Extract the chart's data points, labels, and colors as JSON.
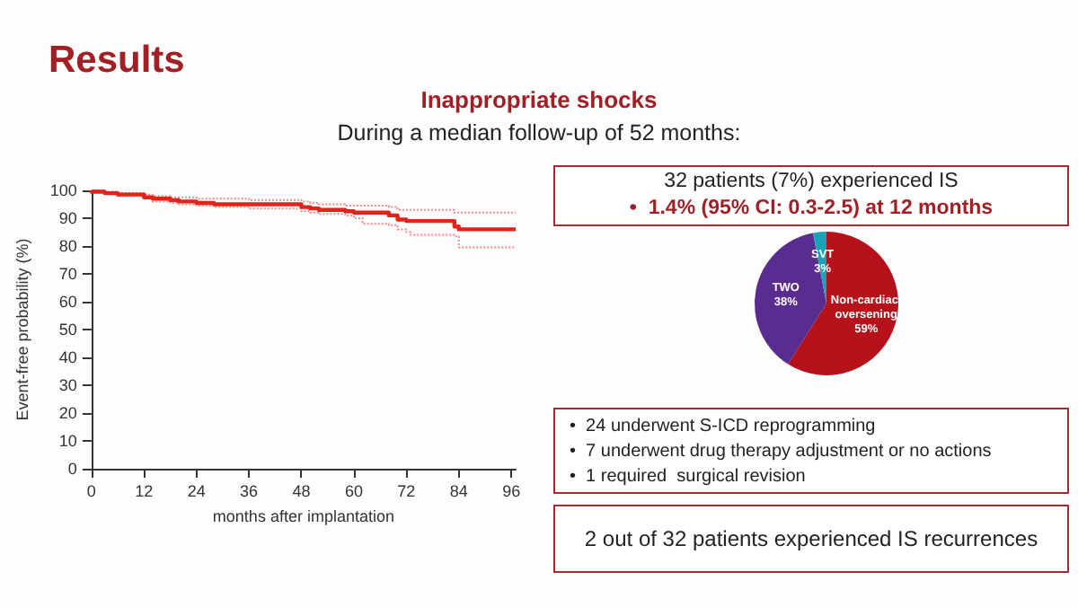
{
  "chart_data": [
    {
      "type": "step",
      "title": "Results",
      "subtitle": "Inappropriate shocks",
      "annotations": [
        "During a median follow-up of 52 months:"
      ],
      "xlabel": "months after implantation",
      "ylabel": "Event-free probability (%)",
      "xlim": [
        0,
        97
      ],
      "xticks": [
        0,
        12,
        24,
        36,
        48,
        60,
        72,
        84,
        96
      ],
      "ylim": [
        0,
        100
      ],
      "yticks": [
        0,
        10,
        20,
        30,
        40,
        50,
        60,
        70,
        80,
        90,
        100
      ],
      "grid": false,
      "marker": "none",
      "series": [
        {
          "color": "#e2231a",
          "line_style": "solid",
          "x": [
            0,
            3,
            6,
            12,
            14,
            18,
            20,
            24,
            28,
            30,
            36,
            48,
            50,
            52,
            58,
            60,
            62,
            68,
            70,
            72,
            73,
            83,
            84,
            85,
            97
          ],
          "values": [
            100,
            99.5,
            99,
            98.5,
            97.5,
            97,
            96.5,
            96,
            95.5,
            95,
            95,
            95,
            94,
            93.5,
            93,
            92.5,
            92,
            92,
            91,
            89.5,
            89,
            89,
            87,
            86,
            86
          ]
        },
        {
          "color": "#ef8a8a",
          "line_style": "dotted",
          "x": [
            0,
            3,
            6,
            12,
            14,
            18,
            20,
            24,
            28,
            30,
            36,
            48,
            50,
            52,
            58,
            60,
            62,
            68,
            70,
            72,
            73,
            83,
            84,
            85,
            97
          ],
          "values": [
            100,
            99.5,
            99,
            98,
            97,
            96,
            95.5,
            95,
            94.5,
            94,
            94,
            93.5,
            92.5,
            92,
            91.5,
            91,
            90,
            88,
            87.5,
            86,
            85,
            84,
            83.5,
            79.5,
            79.5
          ]
        },
        {
          "color": "#ef8a8a",
          "line_style": "dotted",
          "x": [
            0,
            3,
            6,
            12,
            14,
            18,
            20,
            24,
            28,
            30,
            36,
            48,
            50,
            52,
            58,
            60,
            62,
            68,
            70,
            72,
            73,
            83,
            84,
            85,
            97
          ],
          "values": [
            100,
            100,
            99.5,
            99,
            98.5,
            98,
            97.5,
            97.5,
            97,
            97,
            97,
            96.5,
            96,
            95.5,
            95,
            94.5,
            94.5,
            94.5,
            94,
            93,
            93,
            93,
            92,
            92,
            92
          ]
        }
      ]
    },
    {
      "type": "pie",
      "categories": [
        "Non-cardiac oversening",
        "TWO",
        "SVT"
      ],
      "values": [
        59,
        38,
        3
      ],
      "value_labels": [
        "59%",
        "38%",
        "3%"
      ],
      "colors": [
        "#b5121b",
        "#5b2c8f",
        "#1ba3b5"
      ],
      "annotations": [
        "32 patients (7%) experienced IS",
        "•  1.4% (95% CI: 0.3-2.5) at 12 months",
        "•  24 underwent S-ICD reprogramming",
        "•  7 underwent drug therapy adjustment or no actions",
        "•  1 required  surgical revision",
        "2 out of 32 patients experienced IS recurrences"
      ]
    }
  ]
}
